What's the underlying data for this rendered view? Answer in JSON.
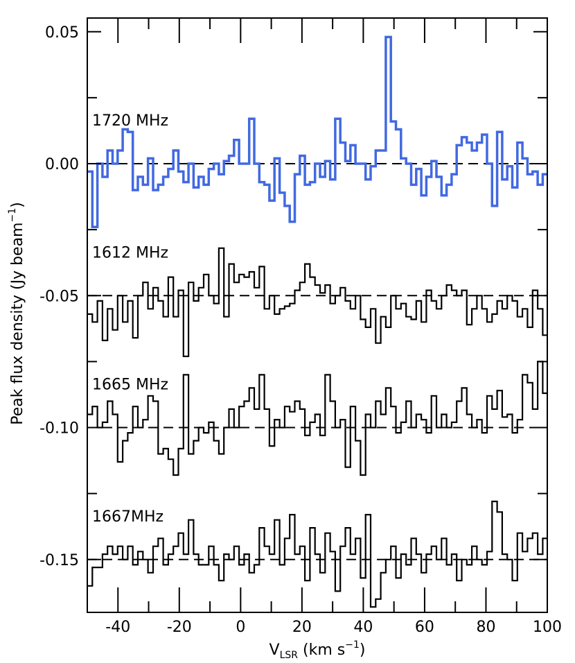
{
  "chart_data": {
    "type": "line",
    "step": true,
    "xlabel": {
      "main": "V",
      "sub": "LSR",
      "units_pre": " (km s",
      "units_sup": "−1",
      "units_post": ")"
    },
    "ylabel": {
      "text": "Peak flux density (Jy beam",
      "sup": "−1",
      "close": ")"
    },
    "xlim": [
      -50,
      100
    ],
    "ylim": [
      -0.17,
      0.05
    ],
    "xticks": [
      -40,
      -20,
      0,
      20,
      40,
      60,
      80,
      100
    ],
    "xtick_labels": [
      "-40",
      "-20",
      "0",
      "20",
      "40",
      "60",
      "80",
      "100"
    ],
    "yticks": [
      0.05,
      0.0,
      -0.05,
      -0.1,
      -0.15
    ],
    "ytick_labels": [
      "0.05",
      "0.00",
      "-0.05",
      "-0.10",
      "-0.15"
    ],
    "baselines": [
      0.0,
      -0.05,
      -0.1,
      -0.15
    ],
    "channel_width_kms": 1.65,
    "x_start": -50,
    "series": [
      {
        "name": "1720 MHz",
        "color": "#4169e1",
        "values": [
          -0.003,
          -0.024,
          0.0,
          -0.005,
          0.005,
          0.0,
          0.005,
          0.013,
          0.012,
          -0.01,
          -0.005,
          -0.008,
          0.002,
          -0.01,
          -0.008,
          -0.005,
          -0.002,
          0.005,
          -0.003,
          -0.007,
          0.0,
          -0.009,
          -0.005,
          -0.008,
          -0.002,
          0.0,
          -0.004,
          0.001,
          0.003,
          0.009,
          0.0,
          0.0,
          0.017,
          0.0,
          -0.007,
          -0.008,
          -0.014,
          0.002,
          -0.011,
          -0.016,
          -0.022,
          -0.004,
          0.003,
          -0.008,
          -0.007,
          0.0,
          -0.005,
          0.001,
          -0.006,
          0.017,
          0.008,
          0.001,
          0.007,
          0.0,
          0.0,
          -0.006,
          -0.001,
          0.005,
          0.005,
          0.048,
          0.016,
          0.013,
          0.002,
          0.0,
          -0.008,
          -0.002,
          -0.012,
          -0.005,
          0.001,
          -0.005,
          -0.012,
          -0.008,
          -0.004,
          0.007,
          0.01,
          0.008,
          0.005,
          0.008,
          0.011,
          0.0,
          -0.016,
          0.012,
          -0.006,
          -0.001,
          -0.009,
          0.008,
          0.002,
          -0.004,
          -0.003,
          -0.008,
          -0.004,
          -0.016,
          0.008,
          0.002,
          0.01,
          0.008,
          0.002,
          -0.005,
          -0.004,
          -0.01,
          0.0,
          0.0,
          0.008,
          -0.012,
          -0.004,
          -0.02
        ]
      },
      {
        "name": "1612 MHz",
        "color": "#000000",
        "values": [
          -0.057,
          -0.06,
          -0.052,
          -0.067,
          -0.055,
          -0.063,
          -0.05,
          -0.06,
          -0.052,
          -0.066,
          -0.05,
          -0.045,
          -0.055,
          -0.047,
          -0.052,
          -0.058,
          -0.043,
          -0.058,
          -0.048,
          -0.073,
          -0.045,
          -0.052,
          -0.047,
          -0.042,
          -0.05,
          -0.053,
          -0.032,
          -0.058,
          -0.038,
          -0.045,
          -0.042,
          -0.043,
          -0.041,
          -0.047,
          -0.039,
          -0.055,
          -0.05,
          -0.057,
          -0.055,
          -0.054,
          -0.053,
          -0.048,
          -0.045,
          -0.038,
          -0.043,
          -0.046,
          -0.049,
          -0.046,
          -0.053,
          -0.05,
          -0.047,
          -0.052,
          -0.055,
          -0.05,
          -0.059,
          -0.062,
          -0.055,
          -0.068,
          -0.058,
          -0.062,
          -0.05,
          -0.055,
          -0.053,
          -0.058,
          -0.059,
          -0.052,
          -0.06,
          -0.048,
          -0.052,
          -0.055,
          -0.05,
          -0.046,
          -0.048,
          -0.05,
          -0.048,
          -0.061,
          -0.055,
          -0.05,
          -0.055,
          -0.06,
          -0.057,
          -0.052,
          -0.055,
          -0.05,
          -0.052,
          -0.058,
          -0.055,
          -0.062,
          -0.048,
          -0.055,
          -0.065,
          -0.047,
          -0.05,
          -0.045,
          -0.049,
          -0.05,
          -0.052,
          -0.05,
          -0.043,
          -0.052,
          -0.06,
          -0.065,
          -0.052,
          -0.058,
          -0.072,
          -0.043,
          -0.046,
          -0.048,
          -0.041,
          -0.046,
          -0.04,
          -0.043,
          -0.04,
          -0.037,
          -0.034,
          -0.028,
          -0.037,
          -0.034
        ]
      },
      {
        "name": "1665 MHz",
        "color": "#000000",
        "values": [
          -0.095,
          -0.092,
          -0.1,
          -0.098,
          -0.09,
          -0.095,
          -0.113,
          -0.105,
          -0.102,
          -0.092,
          -0.1,
          -0.097,
          -0.088,
          -0.09,
          -0.11,
          -0.108,
          -0.112,
          -0.118,
          -0.108,
          -0.08,
          -0.11,
          -0.105,
          -0.1,
          -0.102,
          -0.098,
          -0.105,
          -0.11,
          -0.1,
          -0.093,
          -0.1,
          -0.092,
          -0.09,
          -0.085,
          -0.093,
          -0.08,
          -0.093,
          -0.107,
          -0.097,
          -0.1,
          -0.092,
          -0.094,
          -0.09,
          -0.093,
          -0.103,
          -0.098,
          -0.095,
          -0.103,
          -0.08,
          -0.09,
          -0.1,
          -0.097,
          -0.115,
          -0.092,
          -0.105,
          -0.118,
          -0.095,
          -0.1,
          -0.09,
          -0.095,
          -0.085,
          -0.092,
          -0.102,
          -0.098,
          -0.09,
          -0.1,
          -0.095,
          -0.097,
          -0.102,
          -0.088,
          -0.1,
          -0.095,
          -0.1,
          -0.098,
          -0.09,
          -0.085,
          -0.095,
          -0.1,
          -0.097,
          -0.102,
          -0.088,
          -0.093,
          -0.086,
          -0.096,
          -0.095,
          -0.102,
          -0.097,
          -0.08,
          -0.083,
          -0.093,
          -0.075,
          -0.087,
          -0.092,
          -0.095,
          -0.094,
          -0.1,
          -0.098,
          -0.092,
          -0.097
        ]
      },
      {
        "name": "1667MHz",
        "color": "#000000",
        "values": [
          -0.16,
          -0.153,
          -0.153,
          -0.148,
          -0.145,
          -0.148,
          -0.145,
          -0.15,
          -0.145,
          -0.152,
          -0.147,
          -0.15,
          -0.155,
          -0.145,
          -0.142,
          -0.152,
          -0.148,
          -0.145,
          -0.14,
          -0.148,
          -0.135,
          -0.148,
          -0.152,
          -0.152,
          -0.145,
          -0.152,
          -0.158,
          -0.148,
          -0.15,
          -0.145,
          -0.152,
          -0.148,
          -0.155,
          -0.152,
          -0.138,
          -0.145,
          -0.148,
          -0.135,
          -0.152,
          -0.142,
          -0.133,
          -0.148,
          -0.145,
          -0.158,
          -0.138,
          -0.148,
          -0.155,
          -0.14,
          -0.147,
          -0.162,
          -0.145,
          -0.138,
          -0.148,
          -0.142,
          -0.157,
          -0.133,
          -0.168,
          -0.165,
          -0.155,
          -0.15,
          -0.145,
          -0.157,
          -0.148,
          -0.152,
          -0.142,
          -0.148,
          -0.155,
          -0.148,
          -0.145,
          -0.15,
          -0.142,
          -0.152,
          -0.148,
          -0.158,
          -0.15,
          -0.152,
          -0.145,
          -0.15,
          -0.152,
          -0.147,
          -0.128,
          -0.132,
          -0.148,
          -0.15,
          -0.158,
          -0.14,
          -0.147,
          -0.142,
          -0.14,
          -0.148,
          -0.142,
          -0.145,
          -0.155,
          -0.14,
          -0.145,
          -0.152,
          -0.153,
          -0.153,
          -0.152,
          -0.155
        ]
      }
    ]
  }
}
